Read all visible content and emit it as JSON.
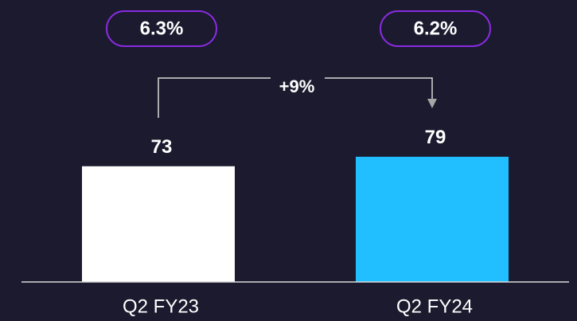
{
  "chart_data": {
    "type": "bar",
    "categories": [
      "Q2 FY23",
      "Q2 FY24"
    ],
    "values": [
      73,
      79
    ],
    "colors": [
      "#ffffff",
      "#21bfff"
    ],
    "top_labels": [
      "6.3%",
      "6.2%"
    ],
    "change_label": "+9%"
  }
}
